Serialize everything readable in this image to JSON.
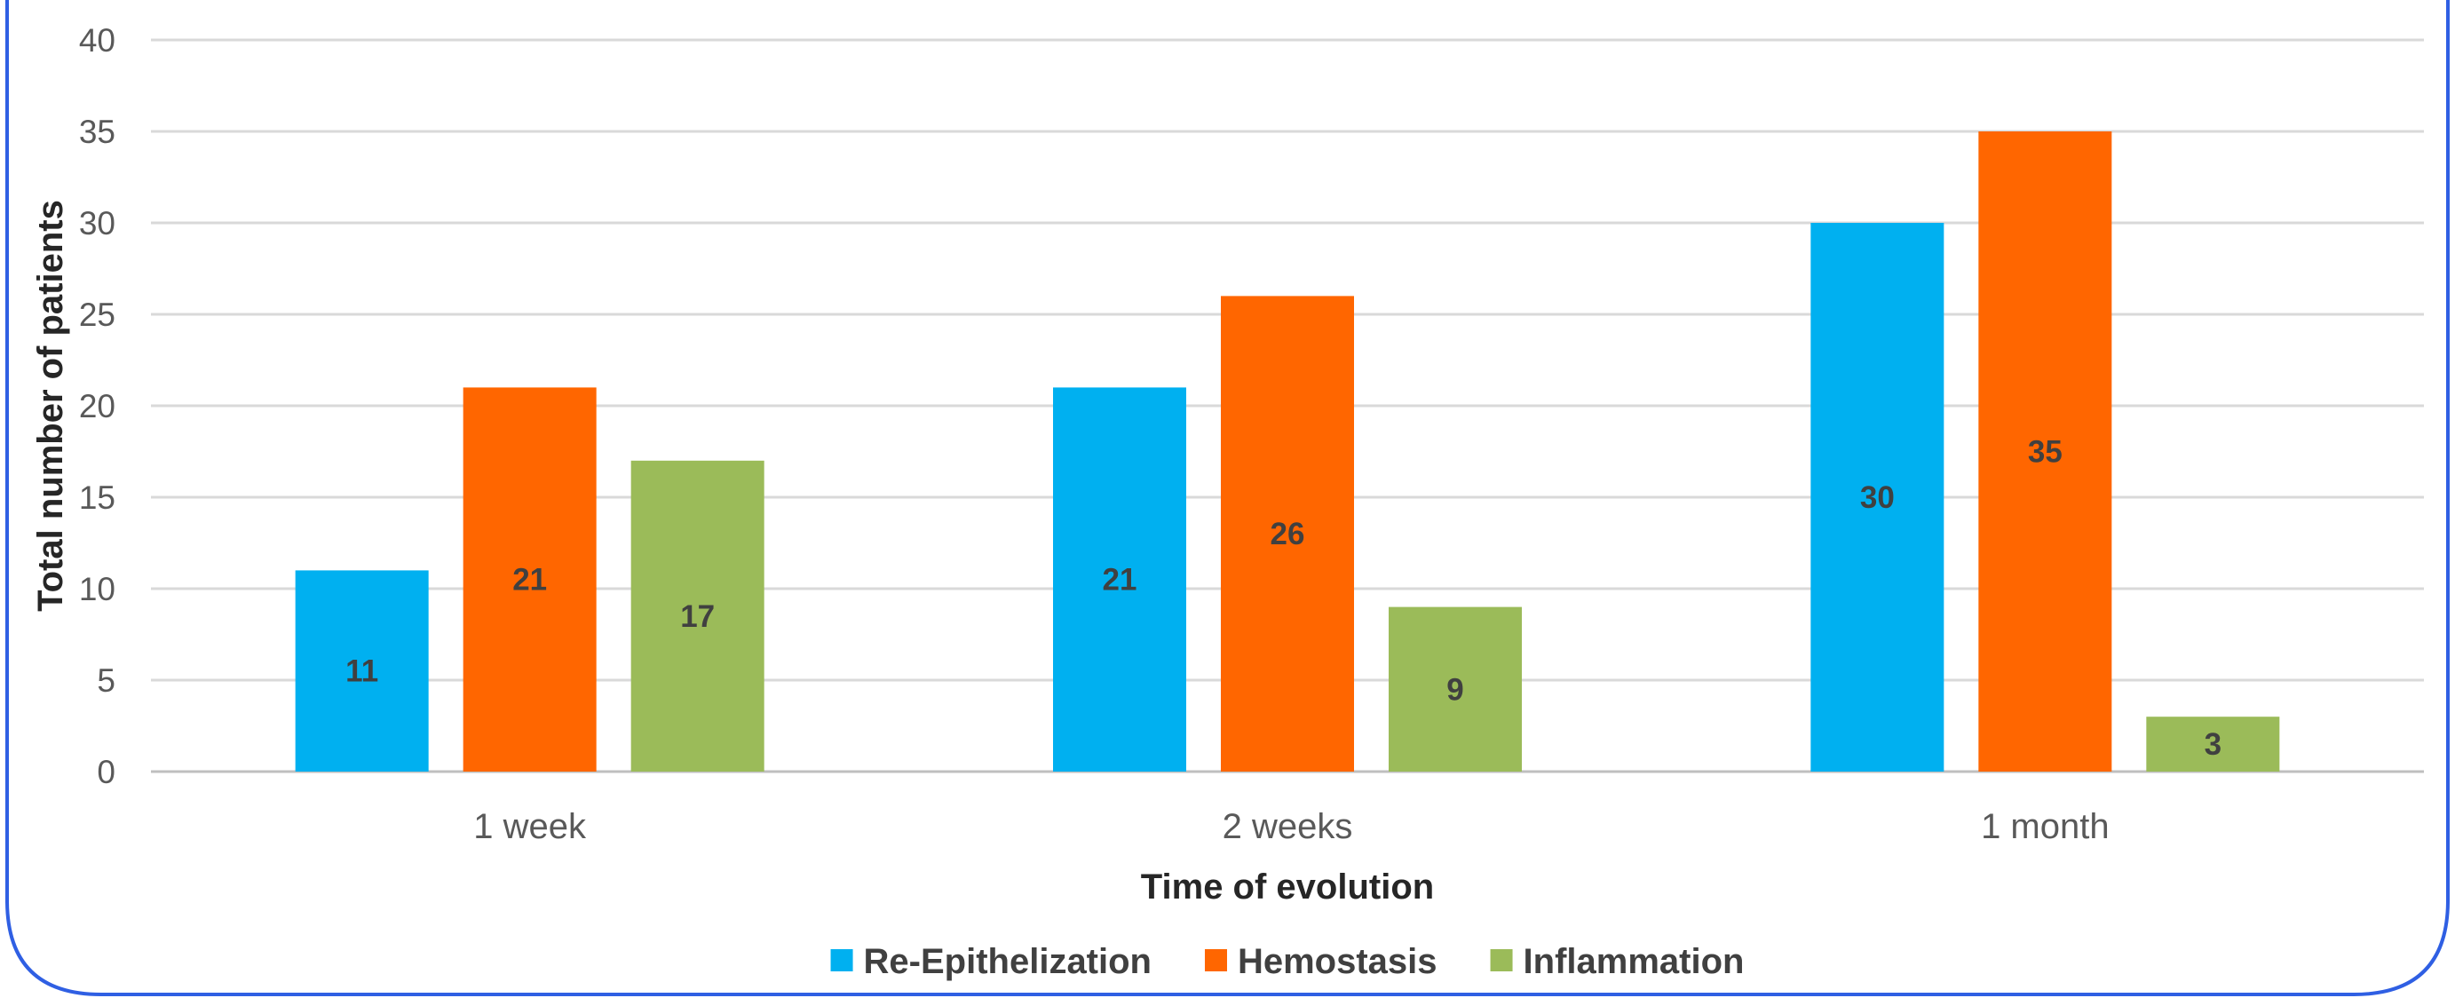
{
  "chart_data": {
    "type": "bar",
    "categories": [
      "1 week",
      "2 weeks",
      "1 month"
    ],
    "series": [
      {
        "name": "Re-Epithelization",
        "values": [
          11,
          21,
          30
        ],
        "color": "#00b0f0"
      },
      {
        "name": "Hemostasis",
        "values": [
          21,
          26,
          35
        ],
        "color": "#ff6600"
      },
      {
        "name": "Inflammation",
        "values": [
          17,
          9,
          3
        ],
        "color": "#9bbb59"
      }
    ],
    "xlabel": "Time of evolution",
    "ylabel": "Total number of patients",
    "ylim": [
      0,
      40
    ],
    "yticks": [
      0,
      5,
      10,
      15,
      20,
      25,
      30,
      35,
      40
    ],
    "grid": true,
    "legend": "bottom",
    "data_labels": true
  },
  "frame": {
    "border_color": "#2f5fe3"
  }
}
